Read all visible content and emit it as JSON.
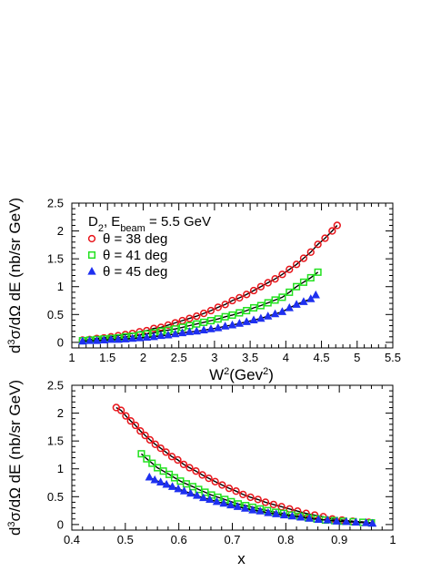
{
  "chart_data": [
    {
      "type": "scatter",
      "title": "D₂, E_beam = 5.5 GeV",
      "title_parts": {
        "target": "D",
        "target_sub": "2",
        "beam_pre": ", E",
        "beam_sub": "beam",
        "beam_post": " = 5.5 GeV"
      },
      "xlabel": "W²(Gev²)",
      "xlabel_parts": {
        "base": "W",
        "sup": "2",
        "mid": "(Gev",
        "sup2": "2",
        "end": ")"
      },
      "ylabel": "d³σ/dΩ dE (nb/sr GeV)",
      "ylabel_parts": {
        "d": "d",
        "sup": "3",
        "rest": "σ/dΩ dE (nb/sr GeV)"
      },
      "xlim": [
        1,
        5.5
      ],
      "ylim": [
        -0.1,
        2.5
      ],
      "xticks": [
        "1",
        "1.5",
        "2",
        "2.5",
        "3",
        "3.5",
        "4",
        "4.5",
        "5",
        "5.5"
      ],
      "yticks": [
        "0",
        "0.5",
        "1",
        "1.5",
        "2",
        "2.5"
      ],
      "grid": false,
      "legend_position": "top-left",
      "series": [
        {
          "name": "θ = 38 deg",
          "marker": "circle",
          "color": "#e8151b",
          "x": [
            1.15,
            1.25,
            1.35,
            1.45,
            1.55,
            1.65,
            1.75,
            1.85,
            1.95,
            2.05,
            2.15,
            2.25,
            2.35,
            2.45,
            2.55,
            2.65,
            2.75,
            2.85,
            2.95,
            3.05,
            3.15,
            3.25,
            3.35,
            3.45,
            3.55,
            3.65,
            3.75,
            3.85,
            3.95,
            4.05,
            4.15,
            4.25,
            4.35,
            4.45,
            4.55,
            4.65,
            4.72
          ],
          "y": [
            0.04,
            0.05,
            0.07,
            0.08,
            0.1,
            0.12,
            0.14,
            0.16,
            0.19,
            0.21,
            0.25,
            0.27,
            0.31,
            0.35,
            0.39,
            0.43,
            0.47,
            0.52,
            0.57,
            0.63,
            0.68,
            0.75,
            0.8,
            0.86,
            0.93,
            1.0,
            1.07,
            1.14,
            1.22,
            1.31,
            1.4,
            1.51,
            1.62,
            1.76,
            1.87,
            2.0,
            2.1
          ]
        },
        {
          "name": "θ = 41 deg",
          "marker": "square",
          "color": "#22e11f",
          "x": [
            1.15,
            1.25,
            1.35,
            1.45,
            1.55,
            1.65,
            1.75,
            1.85,
            1.95,
            2.05,
            2.15,
            2.25,
            2.35,
            2.45,
            2.55,
            2.65,
            2.75,
            2.85,
            2.95,
            3.05,
            3.15,
            3.25,
            3.35,
            3.45,
            3.55,
            3.65,
            3.75,
            3.85,
            3.95,
            4.05,
            4.15,
            4.25,
            4.35,
            4.45
          ],
          "y": [
            0.03,
            0.04,
            0.05,
            0.06,
            0.07,
            0.08,
            0.1,
            0.11,
            0.13,
            0.15,
            0.17,
            0.2,
            0.22,
            0.24,
            0.27,
            0.3,
            0.33,
            0.36,
            0.39,
            0.42,
            0.46,
            0.49,
            0.53,
            0.57,
            0.62,
            0.66,
            0.71,
            0.76,
            0.81,
            0.9,
            1.0,
            1.08,
            1.16,
            1.26
          ]
        },
        {
          "name": "θ = 45 deg",
          "marker": "triangle",
          "color": "#1e30f0",
          "x": [
            1.15,
            1.25,
            1.35,
            1.45,
            1.55,
            1.65,
            1.75,
            1.85,
            1.95,
            2.05,
            2.15,
            2.25,
            2.35,
            2.45,
            2.55,
            2.65,
            2.75,
            2.85,
            2.95,
            3.05,
            3.15,
            3.25,
            3.35,
            3.45,
            3.55,
            3.65,
            3.75,
            3.85,
            3.95,
            4.05,
            4.15,
            4.25,
            4.35,
            4.42
          ],
          "y": [
            0.02,
            0.03,
            0.03,
            0.04,
            0.05,
            0.05,
            0.06,
            0.07,
            0.08,
            0.09,
            0.1,
            0.12,
            0.13,
            0.15,
            0.17,
            0.19,
            0.2,
            0.22,
            0.24,
            0.26,
            0.29,
            0.31,
            0.34,
            0.37,
            0.4,
            0.43,
            0.47,
            0.51,
            0.55,
            0.62,
            0.68,
            0.73,
            0.78,
            0.85
          ]
        }
      ]
    },
    {
      "type": "scatter",
      "xlabel": "x",
      "ylabel": "d³σ/dΩ dE (nb/sr GeV)",
      "ylabel_parts": {
        "d": "d",
        "sup": "3",
        "rest": "σ/dΩ dE (nb/sr GeV)"
      },
      "xlim": [
        0.4,
        1.0
      ],
      "ylim": [
        -0.1,
        2.5
      ],
      "xticks": [
        "0.4",
        "0.5",
        "0.6",
        "0.7",
        "0.8",
        "0.9",
        "1"
      ],
      "yticks": [
        "0",
        "0.5",
        "1",
        "1.5",
        "2",
        "2.5"
      ],
      "grid": false,
      "series": [
        {
          "name": "θ = 38 deg",
          "marker": "circle",
          "color": "#e8151b",
          "x": [
            0.483,
            0.492,
            0.501,
            0.51,
            0.519,
            0.528,
            0.537,
            0.546,
            0.556,
            0.566,
            0.576,
            0.587,
            0.598,
            0.609,
            0.62,
            0.632,
            0.644,
            0.656,
            0.668,
            0.681,
            0.694,
            0.707,
            0.72,
            0.734,
            0.748,
            0.762,
            0.777,
            0.792,
            0.807,
            0.822,
            0.838,
            0.854,
            0.87,
            0.887,
            0.905,
            0.925,
            0.955
          ],
          "y": [
            2.1,
            2.05,
            1.95,
            1.86,
            1.78,
            1.68,
            1.6,
            1.52,
            1.44,
            1.37,
            1.3,
            1.22,
            1.16,
            1.08,
            1.02,
            0.96,
            0.89,
            0.83,
            0.77,
            0.71,
            0.65,
            0.6,
            0.54,
            0.49,
            0.45,
            0.4,
            0.36,
            0.32,
            0.28,
            0.24,
            0.2,
            0.17,
            0.14,
            0.1,
            0.08,
            0.06,
            0.04
          ]
        },
        {
          "name": "θ = 41 deg",
          "marker": "square",
          "color": "#22e11f",
          "x": [
            0.53,
            0.54,
            0.55,
            0.56,
            0.571,
            0.582,
            0.592,
            0.603,
            0.614,
            0.626,
            0.637,
            0.649,
            0.661,
            0.673,
            0.686,
            0.698,
            0.711,
            0.725,
            0.738,
            0.752,
            0.766,
            0.781,
            0.796,
            0.811,
            0.826,
            0.842,
            0.858,
            0.874,
            0.891,
            0.908,
            0.926,
            0.944,
            0.96
          ],
          "y": [
            1.27,
            1.18,
            1.1,
            1.02,
            0.96,
            0.9,
            0.84,
            0.78,
            0.73,
            0.68,
            0.63,
            0.58,
            0.53,
            0.49,
            0.45,
            0.41,
            0.37,
            0.34,
            0.31,
            0.28,
            0.25,
            0.22,
            0.2,
            0.17,
            0.15,
            0.12,
            0.1,
            0.08,
            0.07,
            0.06,
            0.05,
            0.04,
            0.03
          ]
        },
        {
          "name": "θ = 45 deg",
          "marker": "triangle",
          "color": "#1e30f0",
          "x": [
            0.545,
            0.555,
            0.566,
            0.577,
            0.588,
            0.599,
            0.61,
            0.622,
            0.634,
            0.646,
            0.658,
            0.671,
            0.684,
            0.697,
            0.71,
            0.724,
            0.738,
            0.752,
            0.767,
            0.782,
            0.797,
            0.812,
            0.828,
            0.844,
            0.861,
            0.878,
            0.895,
            0.913,
            0.931,
            0.95,
            0.962
          ],
          "y": [
            0.85,
            0.8,
            0.76,
            0.72,
            0.68,
            0.64,
            0.6,
            0.56,
            0.52,
            0.48,
            0.45,
            0.41,
            0.38,
            0.35,
            0.32,
            0.29,
            0.26,
            0.24,
            0.21,
            0.19,
            0.17,
            0.15,
            0.13,
            0.11,
            0.09,
            0.08,
            0.06,
            0.05,
            0.04,
            0.03,
            0.02
          ]
        }
      ]
    }
  ]
}
